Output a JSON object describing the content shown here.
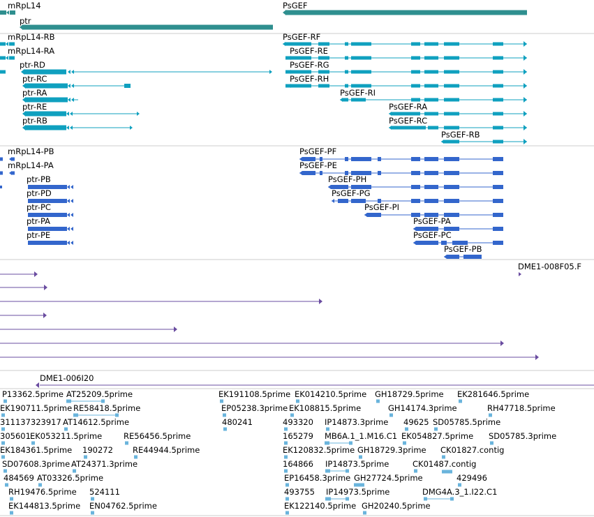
{
  "colors": {
    "gene": "#2f8f8f",
    "transcript": "#0fa0bf",
    "cds": "#3366cc",
    "clone": "#6a4ca0",
    "est": "#6ab4dc",
    "divider": "#cccccc"
  },
  "gene_track": {
    "genes": [
      "mRpL14",
      "ptr",
      "PsGEF"
    ]
  },
  "transcript_track": {
    "labels": [
      "mRpL14-RB",
      "mRpL14-RA",
      "ptr-RD",
      "ptr-RC",
      "ptr-RA",
      "ptr-RE",
      "ptr-RB",
      "PsGEF-RF",
      "PsGEF-RE",
      "PsGEF-RG",
      "PsGEF-RH",
      "PsGEF-RI",
      "PsGEF-RA",
      "PsGEF-RC",
      "PsGEF-RB"
    ]
  },
  "cds_track": {
    "labels": [
      "mRpL14-PB",
      "mRpL14-PA",
      "ptr-PB",
      "ptr-PD",
      "ptr-PC",
      "ptr-PA",
      "ptr-PE",
      "PsGEF-PF",
      "PsGEF-PE",
      "PsGEF-PH",
      "PsGEF-PG",
      "PsGEF-PI",
      "PsGEF-PA",
      "PsGEF-PC",
      "PsGEF-PB"
    ]
  },
  "clone_track": {
    "labels": [
      "DME1-008F05.F",
      "DME1-006I20"
    ]
  },
  "est_track": {
    "labels": [
      "P13362.5prime",
      "AT25209.5prime",
      "EK191108.5prime",
      "EK014210.5prime",
      "GH18729.5prime",
      "EK281646.5prime",
      "EK190711.5prime",
      "RE58418.5prime",
      "EP05238.3prime",
      "EK108815.5prime",
      "GH14174.3prime",
      "RH47718.5prime",
      "311137323917",
      "AT14612.5prime",
      "480241",
      "493320",
      "IP14873.3prime",
      "49625",
      "SD05785.5prime",
      "305601",
      "EK053211.5prime",
      "RE56456.5prime",
      "165279",
      "MB6A.1_1.M16.C1",
      "EK054827.5prime",
      "SD05785.3prime",
      "EK184361.5prime",
      "190272",
      "RE44944.5prime",
      "EK120832.5prime",
      "GH18729.3prime",
      "CK01827.contig",
      "SD07608.3prime",
      "AT24371.3prime",
      "164866",
      "IP14873.5prime",
      "CK01487.contig",
      "484569",
      "AT03326.5prime",
      "EP16458.3prime",
      "GH27724.5prime",
      "429496",
      "RH19476.5prime",
      "524111",
      "493755",
      "IP14973.5prime",
      "DMG4A.3_1.I22.C1",
      "EK144813.5prime",
      "EN04762.5prime",
      "EK122140.5prime",
      "GH20240.5prime"
    ]
  }
}
